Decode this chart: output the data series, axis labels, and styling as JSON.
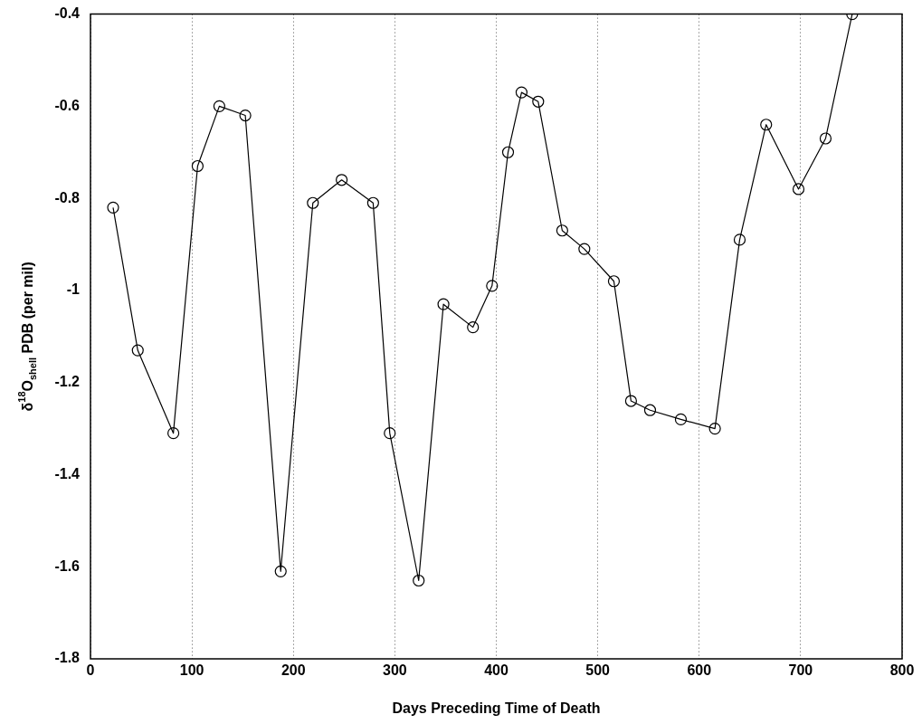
{
  "chart_data": {
    "type": "line",
    "xlabel": "Days Preceding Time of Death",
    "ylabel": "δ$^{18}$O$_{shell}$ PDB (per mil)",
    "x": [
      22.3,
      46.6,
      81.7,
      105.6,
      127,
      152.6,
      187.5,
      219.2,
      247.6,
      278.6,
      295,
      323.5,
      347.9,
      377,
      395.8,
      411.6,
      424.9,
      441.3,
      465,
      486.8,
      515.9,
      532.8,
      551.6,
      581.9,
      615.5,
      639.9,
      666,
      697.9,
      724.6,
      750.8
    ],
    "series": [
      {
        "color": "#000000",
        "values": [
          -0.82,
          -1.13,
          -1.31,
          -0.73,
          -0.6,
          -0.62,
          -1.61,
          -0.81,
          -0.76,
          -0.81,
          -1.31,
          -1.63,
          -1.03,
          -1.08,
          -0.99,
          -0.7,
          -0.57,
          -0.59,
          -0.87,
          -0.91,
          -0.98,
          -1.24,
          -1.26,
          -1.28,
          -1.3,
          -0.89,
          -0.64,
          -0.78,
          -0.67,
          -0.4
        ]
      }
    ],
    "xlim": [
      0,
      800
    ],
    "xticks": [
      0,
      100,
      200,
      300,
      400,
      500,
      600,
      700,
      800
    ],
    "ylim": [
      -1.8,
      -0.4
    ],
    "yticks": [
      -1.8,
      -1.6,
      -1.4,
      -1.2,
      -1,
      -0.8,
      -0.6,
      -0.4
    ],
    "grid": "x",
    "marker": "circle",
    "line_style": "solid",
    "legend": false
  }
}
